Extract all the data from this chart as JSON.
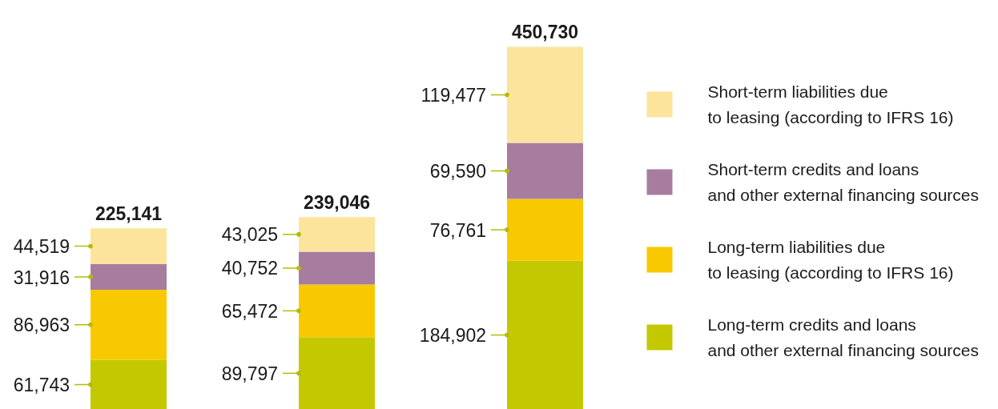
{
  "chart_data": {
    "type": "bar",
    "categories": [
      null,
      null,
      null
    ],
    "stacked": true,
    "legend": "right",
    "series": [
      {
        "name": "Long-term credits and loans\nand other external financing sources",
        "color": "#c3c800",
        "values": [
          61743,
          89797,
          184902
        ],
        "value_labels": [
          "61,743",
          "89,797",
          "184,902"
        ]
      },
      {
        "name": "Long-term liabilities due\nto leasing (according to IFRS 16)",
        "color": "#f9c900",
        "values": [
          86963,
          65472,
          76761
        ],
        "value_labels": [
          "86,963",
          "65,472",
          "76,761"
        ]
      },
      {
        "name": "Short-term credits and loans\nand other external financing sources",
        "color": "#a87c9f",
        "values": [
          31916,
          40752,
          69590
        ],
        "value_labels": [
          "31,916",
          "40,752",
          "69,590"
        ]
      },
      {
        "name": "Short-term liabilities due\nto leasing (according to IFRS 16)",
        "color": "#fce49c",
        "values": [
          44519,
          43025,
          119477
        ],
        "value_labels": [
          "44,519",
          "43,025",
          "119,477"
        ]
      }
    ],
    "totals": [
      "225,141",
      "239,046",
      "450,730"
    ]
  }
}
